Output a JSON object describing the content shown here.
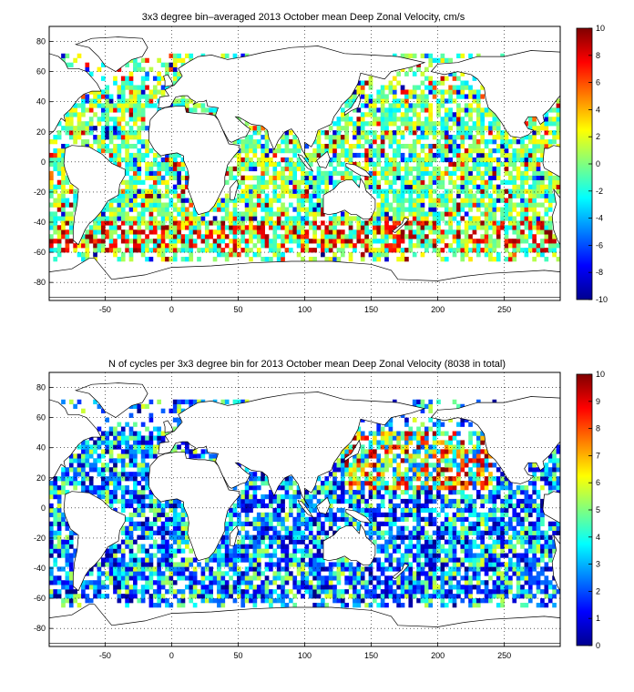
{
  "colors": {
    "land": "#ffffff",
    "coast": "#000000",
    "grid": "#000000",
    "colormap": "jet"
  },
  "chart_data": [
    {
      "type": "heatmap",
      "title": "3x3 degree bin–averaged 2013 October mean Deep Zonal Velocity, cm/s",
      "xlabel": "",
      "ylabel": "",
      "xlim": [
        -92,
        292
      ],
      "ylim": [
        -92,
        90
      ],
      "x_ticks": [
        -50,
        0,
        50,
        100,
        150,
        200,
        250
      ],
      "y_ticks": [
        -80,
        -60,
        -40,
        -20,
        0,
        20,
        40,
        60,
        80
      ],
      "bin_size_deg": 3,
      "grid": true,
      "colorbar": {
        "min": -10,
        "max": 10,
        "ticks": [
          -10,
          -8,
          -6,
          -4,
          -2,
          0,
          2,
          4,
          6,
          8,
          10
        ],
        "placement": "right"
      }
    },
    {
      "type": "heatmap",
      "title": "N of cycles per 3x3 degree bin for 2013 October mean Deep Zonal Velocity (8038 in total)",
      "xlabel": "",
      "ylabel": "",
      "xlim": [
        -92,
        292
      ],
      "ylim": [
        -92,
        90
      ],
      "x_ticks": [
        -50,
        0,
        50,
        100,
        150,
        200,
        250
      ],
      "y_ticks": [
        -80,
        -60,
        -40,
        -20,
        0,
        20,
        40,
        60,
        80
      ],
      "bin_size_deg": 3,
      "grid": true,
      "colorbar": {
        "min": 0,
        "max": 10,
        "ticks": [
          0,
          1,
          2,
          3,
          4,
          5,
          6,
          7,
          8,
          9,
          10
        ],
        "placement": "right"
      }
    }
  ]
}
